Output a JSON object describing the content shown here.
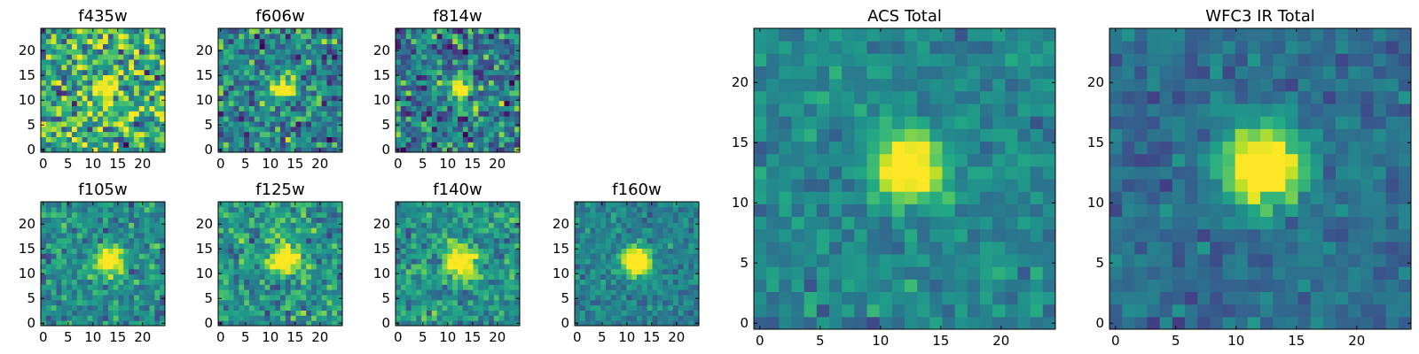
{
  "figure": {
    "colormap": "viridis"
  },
  "chart_data": [
    {
      "type": "heatmap",
      "title": "f435w",
      "grid_size": [
        24,
        24
      ],
      "xlim": [
        0,
        24
      ],
      "ylim": [
        0,
        24
      ],
      "xticks": [
        0,
        5,
        10,
        15,
        20
      ],
      "yticks": [
        0,
        5,
        10,
        15,
        20
      ],
      "source_center": [
        12,
        12
      ],
      "source_radius": 1.4,
      "noise": 0.3,
      "background": 0.62,
      "peak": 1.0,
      "seed": 11
    },
    {
      "type": "heatmap",
      "title": "f606w",
      "grid_size": [
        24,
        24
      ],
      "xlim": [
        0,
        24
      ],
      "ylim": [
        0,
        24
      ],
      "xticks": [
        0,
        5,
        10,
        15,
        20
      ],
      "yticks": [
        0,
        5,
        10,
        15,
        20
      ],
      "source_center": [
        12,
        12
      ],
      "source_radius": 1.4,
      "noise": 0.22,
      "background": 0.45,
      "peak": 1.0,
      "seed": 23
    },
    {
      "type": "heatmap",
      "title": "f814w",
      "grid_size": [
        24,
        24
      ],
      "xlim": [
        0,
        24
      ],
      "ylim": [
        0,
        24
      ],
      "xticks": [
        0,
        5,
        10,
        15,
        20
      ],
      "yticks": [
        0,
        5,
        10,
        15,
        20
      ],
      "source_center": [
        12,
        12
      ],
      "source_radius": 1.4,
      "noise": 0.24,
      "background": 0.42,
      "peak": 1.0,
      "seed": 37
    },
    {
      "type": "heatmap",
      "title": "f105w",
      "grid_size": [
        24,
        24
      ],
      "xlim": [
        0,
        24
      ],
      "ylim": [
        0,
        24
      ],
      "xticks": [
        0,
        5,
        10,
        15,
        20
      ],
      "yticks": [
        0,
        5,
        10,
        15,
        20
      ],
      "source_center": [
        12.5,
        12
      ],
      "source_radius": 1.9,
      "noise": 0.15,
      "background": 0.48,
      "peak": 1.0,
      "seed": 41
    },
    {
      "type": "heatmap",
      "title": "f125w",
      "grid_size": [
        24,
        24
      ],
      "xlim": [
        0,
        24
      ],
      "ylim": [
        0,
        24
      ],
      "xticks": [
        0,
        5,
        10,
        15,
        20
      ],
      "yticks": [
        0,
        5,
        10,
        15,
        20
      ],
      "source_center": [
        12.5,
        12.5
      ],
      "source_radius": 2.0,
      "noise": 0.17,
      "background": 0.52,
      "peak": 1.0,
      "seed": 53
    },
    {
      "type": "heatmap",
      "title": "f140w",
      "grid_size": [
        24,
        24
      ],
      "xlim": [
        0,
        24
      ],
      "ylim": [
        0,
        24
      ],
      "xticks": [
        0,
        5,
        10,
        15,
        20
      ],
      "yticks": [
        0,
        5,
        10,
        15,
        20
      ],
      "source_center": [
        12,
        12
      ],
      "source_radius": 2.2,
      "noise": 0.15,
      "background": 0.52,
      "peak": 0.95,
      "seed": 67
    },
    {
      "type": "heatmap",
      "title": "f160w",
      "grid_size": [
        24,
        24
      ],
      "xlim": [
        0,
        24
      ],
      "ylim": [
        0,
        24
      ],
      "xticks": [
        0,
        5,
        10,
        15,
        20
      ],
      "yticks": [
        0,
        5,
        10,
        15,
        20
      ],
      "source_center": [
        11.5,
        12
      ],
      "source_radius": 2.0,
      "noise": 0.11,
      "background": 0.44,
      "peak": 1.0,
      "seed": 79
    },
    {
      "type": "heatmap",
      "title": "ACS Total",
      "grid_size": [
        24,
        24
      ],
      "xlim": [
        0,
        24
      ],
      "ylim": [
        0,
        24
      ],
      "xticks": [
        0,
        5,
        10,
        15,
        20
      ],
      "yticks": [
        0,
        5,
        10,
        15,
        20
      ],
      "source_center": [
        11.8,
        12.5
      ],
      "source_radius": 1.9,
      "noise": 0.1,
      "background": 0.45,
      "peak": 1.0,
      "seed": 97
    },
    {
      "type": "heatmap",
      "title": "WFC3 IR Total",
      "grid_size": [
        24,
        24
      ],
      "xlim": [
        0,
        24
      ],
      "ylim": [
        0,
        24
      ],
      "xticks": [
        0,
        5,
        10,
        15,
        20
      ],
      "yticks": [
        0,
        5,
        10,
        15,
        20
      ],
      "source_center": [
        11.8,
        12.5
      ],
      "source_radius": 2.2,
      "noise": 0.09,
      "background": 0.36,
      "peak": 1.0,
      "seed": 113
    }
  ]
}
